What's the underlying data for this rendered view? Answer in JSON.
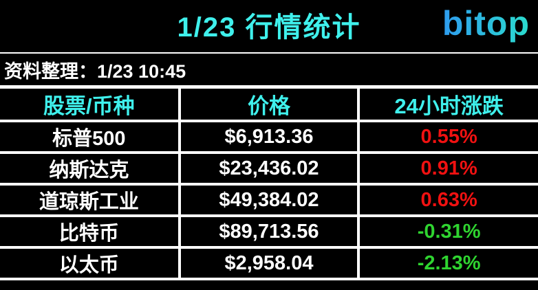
{
  "header": {
    "title": "1/23 行情统计",
    "logo_text": "bitop",
    "source_line": "资料整理：1/23 10:45"
  },
  "colors": {
    "background": "#000000",
    "text": "#ffffff",
    "accent_cyan": "#3ff0ec",
    "border": "#ffffff",
    "up": "#f01111",
    "down": "#2fd430",
    "logo_gradient_start": "#2e9cef",
    "logo_gradient_end": "#2bdccd"
  },
  "table": {
    "columns": [
      "股票/币种",
      "价格",
      "24小时涨跌"
    ],
    "rows": [
      {
        "name": "标普500",
        "price": "$6,913.36",
        "change": "0.55%",
        "direction": "up"
      },
      {
        "name": "纳斯达克",
        "price": "$23,436.02",
        "change": "0.91%",
        "direction": "up"
      },
      {
        "name": "道琼斯工业",
        "price": "$49,384.02",
        "change": "0.63%",
        "direction": "up"
      },
      {
        "name": "比特币",
        "price": "$89,713.56",
        "change": "-0.31%",
        "direction": "down"
      },
      {
        "name": "以太币",
        "price": "$2,958.04",
        "change": "-2.13%",
        "direction": "down"
      }
    ]
  },
  "chart_data": {
    "type": "table",
    "title": "1/23 行情统计",
    "subtitle": "资料整理：1/23 10:45",
    "columns": [
      "股票/币种",
      "价格",
      "24小时涨跌"
    ],
    "rows": [
      [
        "标普500",
        6913.36,
        0.55
      ],
      [
        "纳斯达克",
        23436.02,
        0.91
      ],
      [
        "道琼斯工业",
        49384.02,
        0.63
      ],
      [
        "比特币",
        89713.56,
        -0.31
      ],
      [
        "以太币",
        2958.04,
        -2.13
      ]
    ],
    "units": {
      "价格": "USD $",
      "24小时涨跌": "%"
    },
    "color_convention": {
      "positive_change": "red",
      "negative_change": "green"
    }
  }
}
